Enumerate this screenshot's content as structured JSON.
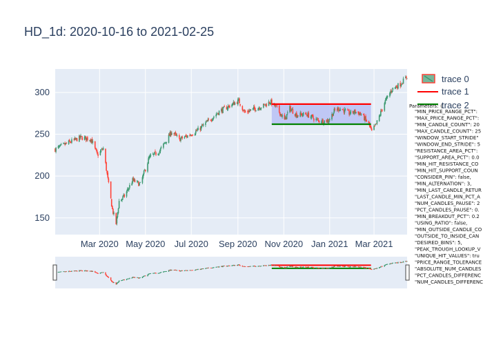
{
  "chart_data": {
    "type": "candlestick",
    "title": "HD_1d: 2020-10-16 to 2021-02-25",
    "xlabel": "",
    "ylabel": "",
    "ylim": [
      130,
      328
    ],
    "xlim": [
      "2020-01-02",
      "2021-04-14"
    ],
    "grid": true,
    "legend_position": "top-right",
    "x_ticks": [
      {
        "date": "2020-03-01",
        "label": "Mar 2020"
      },
      {
        "date": "2020-05-01",
        "label": "May 2020"
      },
      {
        "date": "2020-07-01",
        "label": "Jul 2020"
      },
      {
        "date": "2020-09-01",
        "label": "Sep 2020"
      },
      {
        "date": "2020-11-01",
        "label": "Nov 2020"
      },
      {
        "date": "2021-01-01",
        "label": "Jan 2021"
      },
      {
        "date": "2021-03-01",
        "label": "Mar 2021"
      }
    ],
    "y_ticks": [
      150,
      200,
      250,
      300
    ],
    "colors": {
      "increasing": "#3d9970",
      "decreasing": "#ff4136",
      "resistance": "#ff0000",
      "support": "#008000",
      "region_fill": "#b9c1f5",
      "plot_bg": "#e5ecf6"
    },
    "close_series": [
      {
        "date": "2020-01-02",
        "close": 232
      },
      {
        "date": "2020-01-20",
        "close": 240
      },
      {
        "date": "2020-02-05",
        "close": 246
      },
      {
        "date": "2020-02-19",
        "close": 244
      },
      {
        "date": "2020-02-27",
        "close": 225
      },
      {
        "date": "2020-03-06",
        "close": 233
      },
      {
        "date": "2020-03-12",
        "close": 196
      },
      {
        "date": "2020-03-18",
        "close": 160
      },
      {
        "date": "2020-03-23",
        "close": 143
      },
      {
        "date": "2020-03-27",
        "close": 170
      },
      {
        "date": "2020-04-03",
        "close": 176
      },
      {
        "date": "2020-04-14",
        "close": 195
      },
      {
        "date": "2020-04-24",
        "close": 190
      },
      {
        "date": "2020-05-06",
        "close": 222
      },
      {
        "date": "2020-05-20",
        "close": 230
      },
      {
        "date": "2020-06-05",
        "close": 253
      },
      {
        "date": "2020-06-15",
        "close": 244
      },
      {
        "date": "2020-06-26",
        "close": 248
      },
      {
        "date": "2020-07-10",
        "close": 255
      },
      {
        "date": "2020-07-24",
        "close": 266
      },
      {
        "date": "2020-08-07",
        "close": 277
      },
      {
        "date": "2020-08-21",
        "close": 284
      },
      {
        "date": "2020-09-02",
        "close": 290
      },
      {
        "date": "2020-09-10",
        "close": 276
      },
      {
        "date": "2020-09-22",
        "close": 280
      },
      {
        "date": "2020-10-05",
        "close": 284
      },
      {
        "date": "2020-10-14",
        "close": 289
      },
      {
        "date": "2020-10-23",
        "close": 281
      },
      {
        "date": "2020-11-02",
        "close": 267
      },
      {
        "date": "2020-11-09",
        "close": 281
      },
      {
        "date": "2020-11-18",
        "close": 273
      },
      {
        "date": "2020-12-01",
        "close": 274
      },
      {
        "date": "2020-12-09",
        "close": 270
      },
      {
        "date": "2020-12-17",
        "close": 266
      },
      {
        "date": "2020-12-30",
        "close": 266
      },
      {
        "date": "2021-01-08",
        "close": 279
      },
      {
        "date": "2021-01-15",
        "close": 281
      },
      {
        "date": "2021-01-27",
        "close": 275
      },
      {
        "date": "2021-02-04",
        "close": 277
      },
      {
        "date": "2021-02-12",
        "close": 274
      },
      {
        "date": "2021-02-22",
        "close": 262
      },
      {
        "date": "2021-02-26",
        "close": 253
      },
      {
        "date": "2021-03-04",
        "close": 262
      },
      {
        "date": "2021-03-15",
        "close": 288
      },
      {
        "date": "2021-03-25",
        "close": 304
      },
      {
        "date": "2021-04-05",
        "close": 310
      },
      {
        "date": "2021-04-14",
        "close": 319
      }
    ],
    "resistance_level": 286,
    "support_level": 262,
    "region_range": [
      "2020-10-16",
      "2021-02-25"
    ],
    "series": [
      {
        "name": "trace 0"
      },
      {
        "name": "trace 1"
      },
      {
        "name": "trace 2"
      }
    ],
    "annotation_title": "Parameters: {",
    "parameters": [
      "\"MIN_PRICE_RANGE_PCT\":",
      "\"MAX_PRICE_RANGE_PCT\":",
      "\"MIN_CANDLE_COUNT\": 20",
      "\"MAX_CANDLE_COUNT\": 25",
      "\"WINDOW_START_STRIDE\"",
      "\"WINDOW_END_STRIDE\": 5",
      "\"RESISTANCE_AREA_PCT\":",
      "\"SUPPORT_AREA_PCT\": 0.0",
      "\"MIN_HIT_RESISTANCE_CO",
      "\"MIN_HIT_SUPPORT_COUN",
      "\"CONSIDER_PIN\": false,",
      "\"MIN_ALTERNATION\": 3,",
      "\"MIN_LAST_CANDLE_RETUR",
      "\"LAST_CANDLE_MIN_PCT_A",
      "\"NUM_CANDLES_PAUSE\": 2",
      "\"PCT_CANDLES_PAUSE\": 0.",
      "\"MIN_BREAKOUT_PCT\": 0.2",
      "\"USING_RATIO\": false,",
      "\"MIN_OUTSIDE_CANDLE_CO",
      "\"OUTSIDE_TO_INSIDE_CAN",
      "\"DESIRED_BINS\": 5,",
      "\"PEAK_TROUGH_LOOKUP_V",
      "\"UNIQUE_HIT_VALUES\": tru",
      "\"PRICE_RANGE_TOLERANCE",
      "\"ABSOLUTE_NUM_CANDLES",
      "\"PCT_CANDLES_DIFFERENC",
      "\"NUM_CANDLES_DIFFERENC"
    ]
  }
}
